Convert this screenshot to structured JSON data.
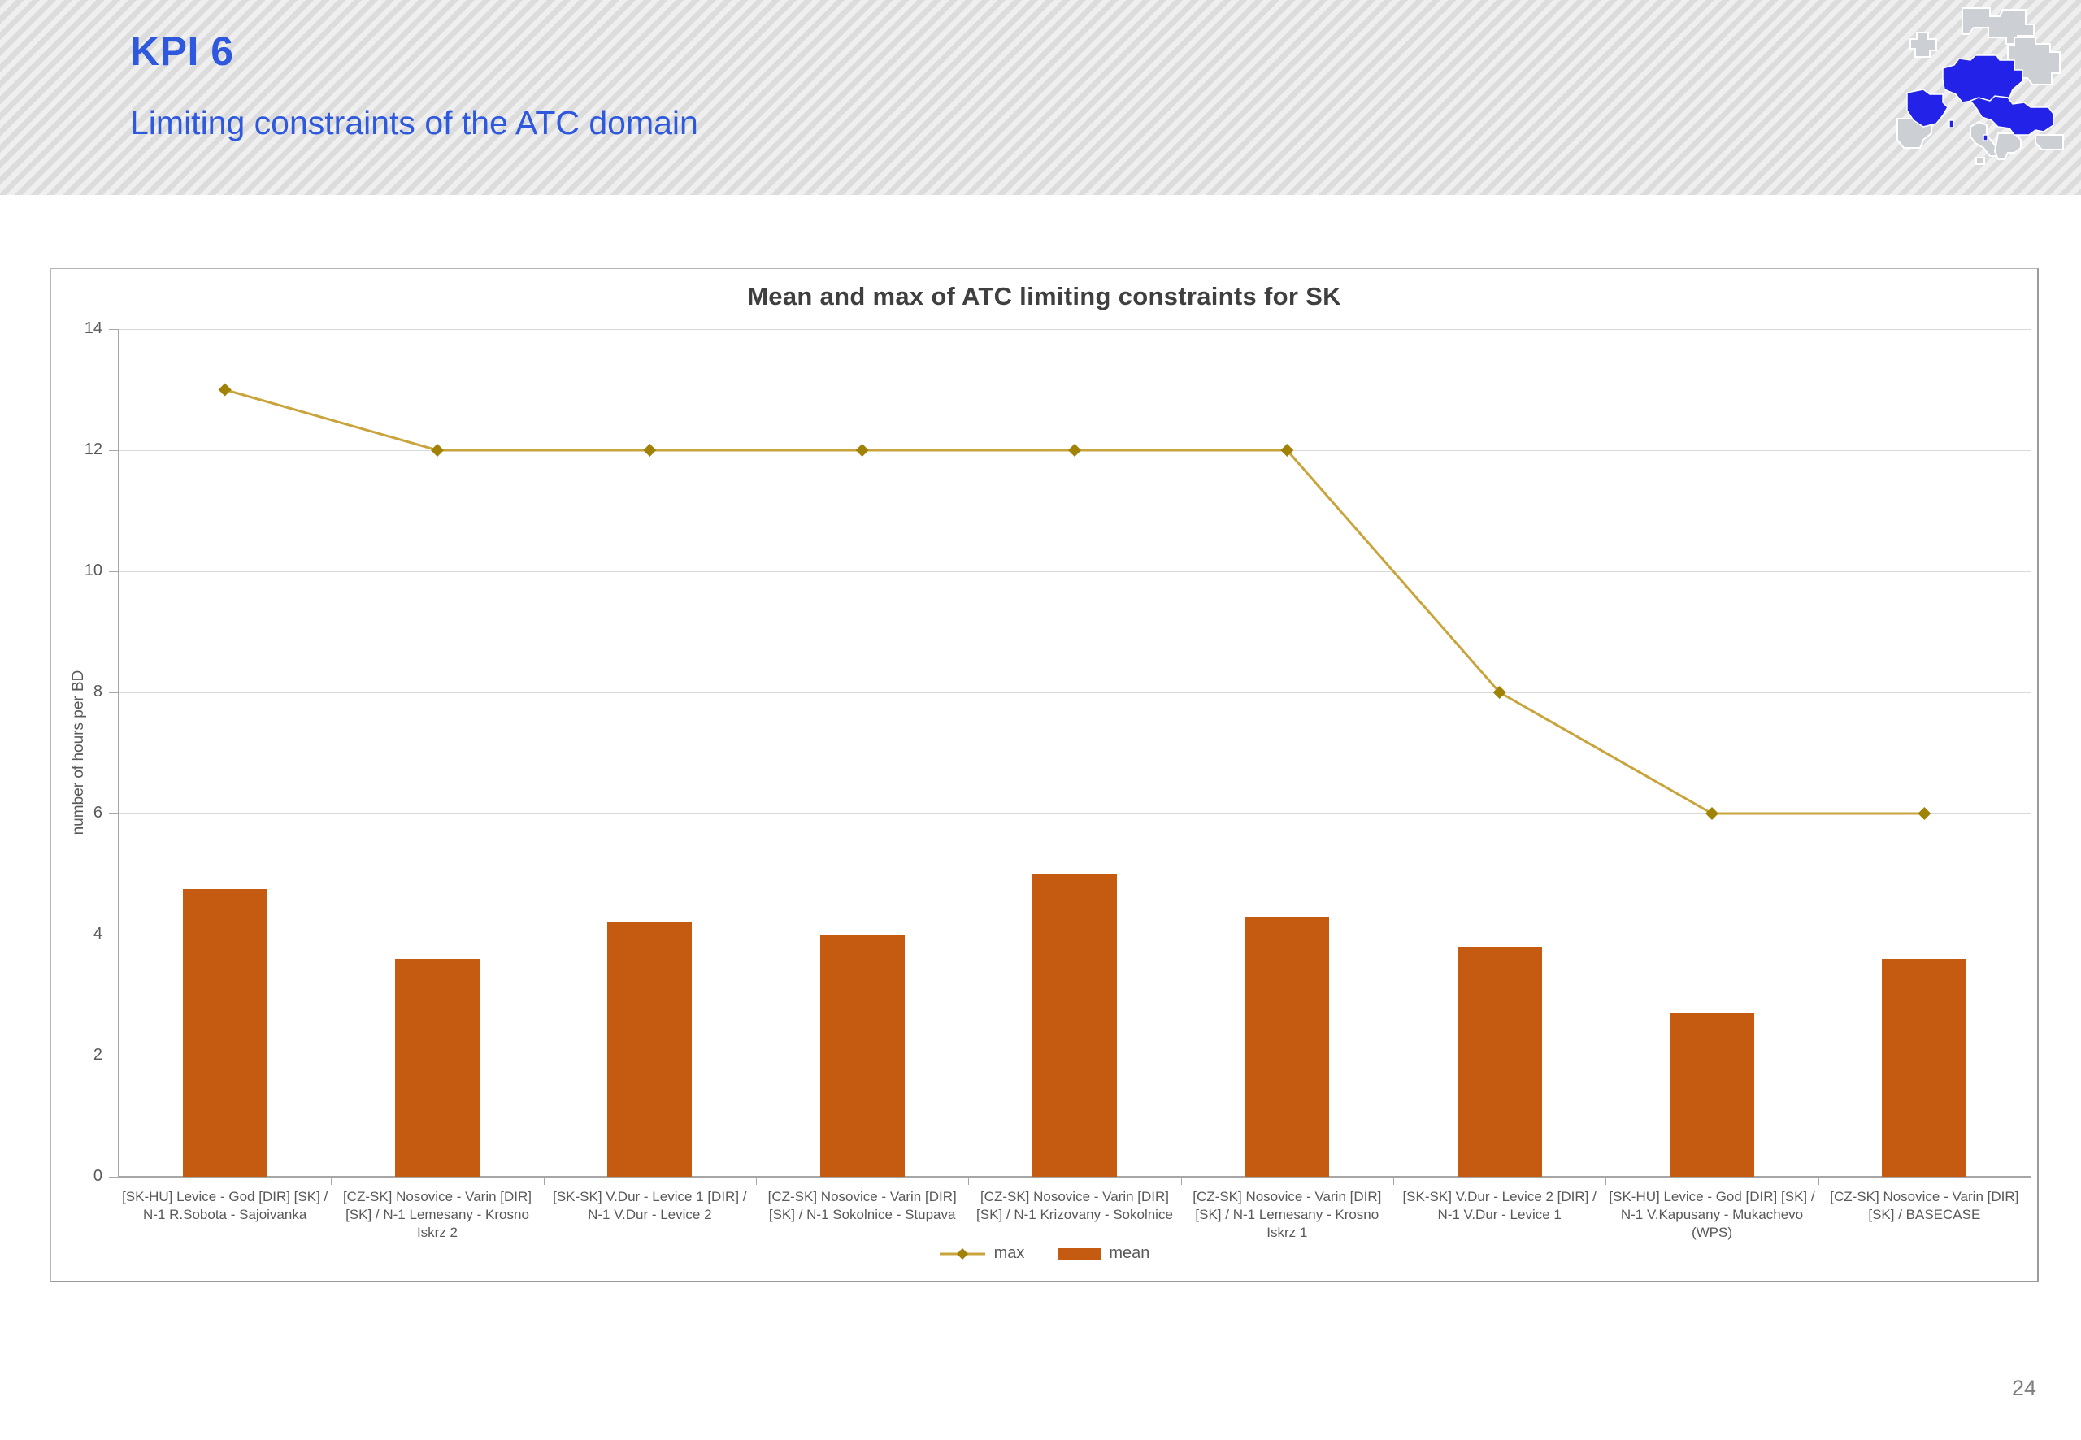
{
  "header": {
    "kpi_label": "KPI 6",
    "subtitle": "Limiting constraints of the ATC domain",
    "text_color": "#2e58dd"
  },
  "footer": {
    "page_number": "24"
  },
  "logo": {
    "description": "pixelated Europe map with Core region highlighted",
    "land_color": "#ccd0d4",
    "highlight_color": "#2222e8",
    "border_color": "#ffffff"
  },
  "chart_data": {
    "type": "combo bar+line",
    "title": "Mean and max of ATC limiting constraints for SK",
    "xlabel": "",
    "ylabel": "number of hours per BD",
    "ylim": [
      0,
      14
    ],
    "yticks": [
      0,
      2,
      4,
      6,
      8,
      10,
      12,
      14
    ],
    "grid": true,
    "legend_position": "bottom-center",
    "categories": [
      "[SK-HU] Levice - God [DIR] [SK] / N-1 R.Sobota - Sajoivanka",
      "[CZ-SK] Nosovice - Varin [DIR] [SK] / N-1 Lemesany - Krosno Iskrz 2",
      "[SK-SK] V.Dur - Levice 1 [DIR] / N-1 V.Dur - Levice 2",
      "[CZ-SK] Nosovice - Varin [DIR] [SK] / N-1 Sokolnice - Stupava",
      "[CZ-SK] Nosovice - Varin [DIR] [SK] / N-1 Krizovany - Sokolnice",
      "[CZ-SK] Nosovice - Varin [DIR] [SK] / N-1 Lemesany - Krosno Iskrz 1",
      "[SK-SK] V.Dur - Levice 2 [DIR] / N-1 V.Dur - Levice 1",
      "[SK-HU] Levice - God [DIR] [SK] / N-1 V.Kapusany - Mukachevo (WPS)",
      "[CZ-SK] Nosovice - Varin [DIR] [SK] / BASECASE"
    ],
    "series": [
      {
        "name": "max",
        "type": "line",
        "color": "#C9A43C",
        "marker": "diamond",
        "marker_color": "#A08207",
        "values": [
          13,
          12,
          12,
          12,
          12,
          12,
          8,
          6,
          6
        ]
      },
      {
        "name": "mean",
        "type": "bar",
        "color": "#C55A11",
        "values": [
          4.75,
          3.6,
          4.2,
          4.0,
          5.0,
          4.3,
          3.8,
          2.7,
          3.6
        ]
      }
    ]
  }
}
